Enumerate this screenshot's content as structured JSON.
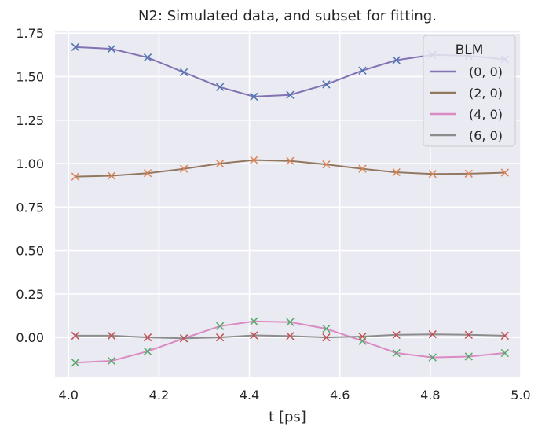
{
  "chart_data": {
    "type": "line",
    "title": "N2: Simulated data, and subset for fitting.",
    "xlabel": "t [ps]",
    "ylabel": "",
    "xlim": [
      3.97,
      5.0
    ],
    "ylim": [
      -0.23,
      1.76
    ],
    "x_ticks": [
      "4.0",
      "4.2",
      "4.4",
      "4.6",
      "4.8",
      "5.0"
    ],
    "y_ticks": [
      "0.00",
      "0.25",
      "0.50",
      "0.75",
      "1.00",
      "1.25",
      "1.50",
      "1.75"
    ],
    "grid": true,
    "legend": {
      "title": "BLM",
      "placement": "top-right"
    },
    "colors": {
      "background": "#EAEAF2",
      "grid": "#FFFFFF",
      "text": "#262626"
    },
    "series": [
      {
        "name": "(0, 0)",
        "color": "#8172B3",
        "marker_color": "#4C72B0",
        "x": [
          4.015,
          4.095,
          4.175,
          4.255,
          4.335,
          4.41,
          4.49,
          4.57,
          4.65,
          4.725,
          4.805,
          4.885,
          4.965
        ],
        "y": [
          1.67,
          1.66,
          1.61,
          1.525,
          1.44,
          1.385,
          1.395,
          1.455,
          1.535,
          1.595,
          1.625,
          1.62,
          1.6
        ]
      },
      {
        "name": "(2, 0)",
        "color": "#937860",
        "marker_color": "#DD8452",
        "x": [
          4.015,
          4.095,
          4.175,
          4.255,
          4.335,
          4.41,
          4.49,
          4.57,
          4.65,
          4.725,
          4.805,
          4.885,
          4.965
        ],
        "y": [
          0.925,
          0.93,
          0.945,
          0.97,
          1.0,
          1.02,
          1.015,
          0.995,
          0.97,
          0.95,
          0.94,
          0.942,
          0.948
        ]
      },
      {
        "name": "(4, 0)",
        "color": "#DA8BC3",
        "marker_color": "#55A868",
        "x": [
          4.015,
          4.095,
          4.175,
          4.255,
          4.335,
          4.41,
          4.49,
          4.57,
          4.65,
          4.725,
          4.805,
          4.885,
          4.965
        ],
        "y": [
          -0.145,
          -0.135,
          -0.08,
          -0.005,
          0.065,
          0.092,
          0.088,
          0.05,
          -0.02,
          -0.09,
          -0.115,
          -0.11,
          -0.09
        ]
      },
      {
        "name": "(6, 0)",
        "color": "#8C8C8C",
        "marker_color": "#C44E52",
        "x": [
          4.015,
          4.095,
          4.175,
          4.255,
          4.335,
          4.41,
          4.49,
          4.57,
          4.65,
          4.725,
          4.805,
          4.885,
          4.965
        ],
        "y": [
          0.01,
          0.01,
          0.0,
          -0.005,
          0.0,
          0.012,
          0.008,
          0.0,
          0.005,
          0.015,
          0.018,
          0.015,
          0.01
        ]
      }
    ]
  }
}
